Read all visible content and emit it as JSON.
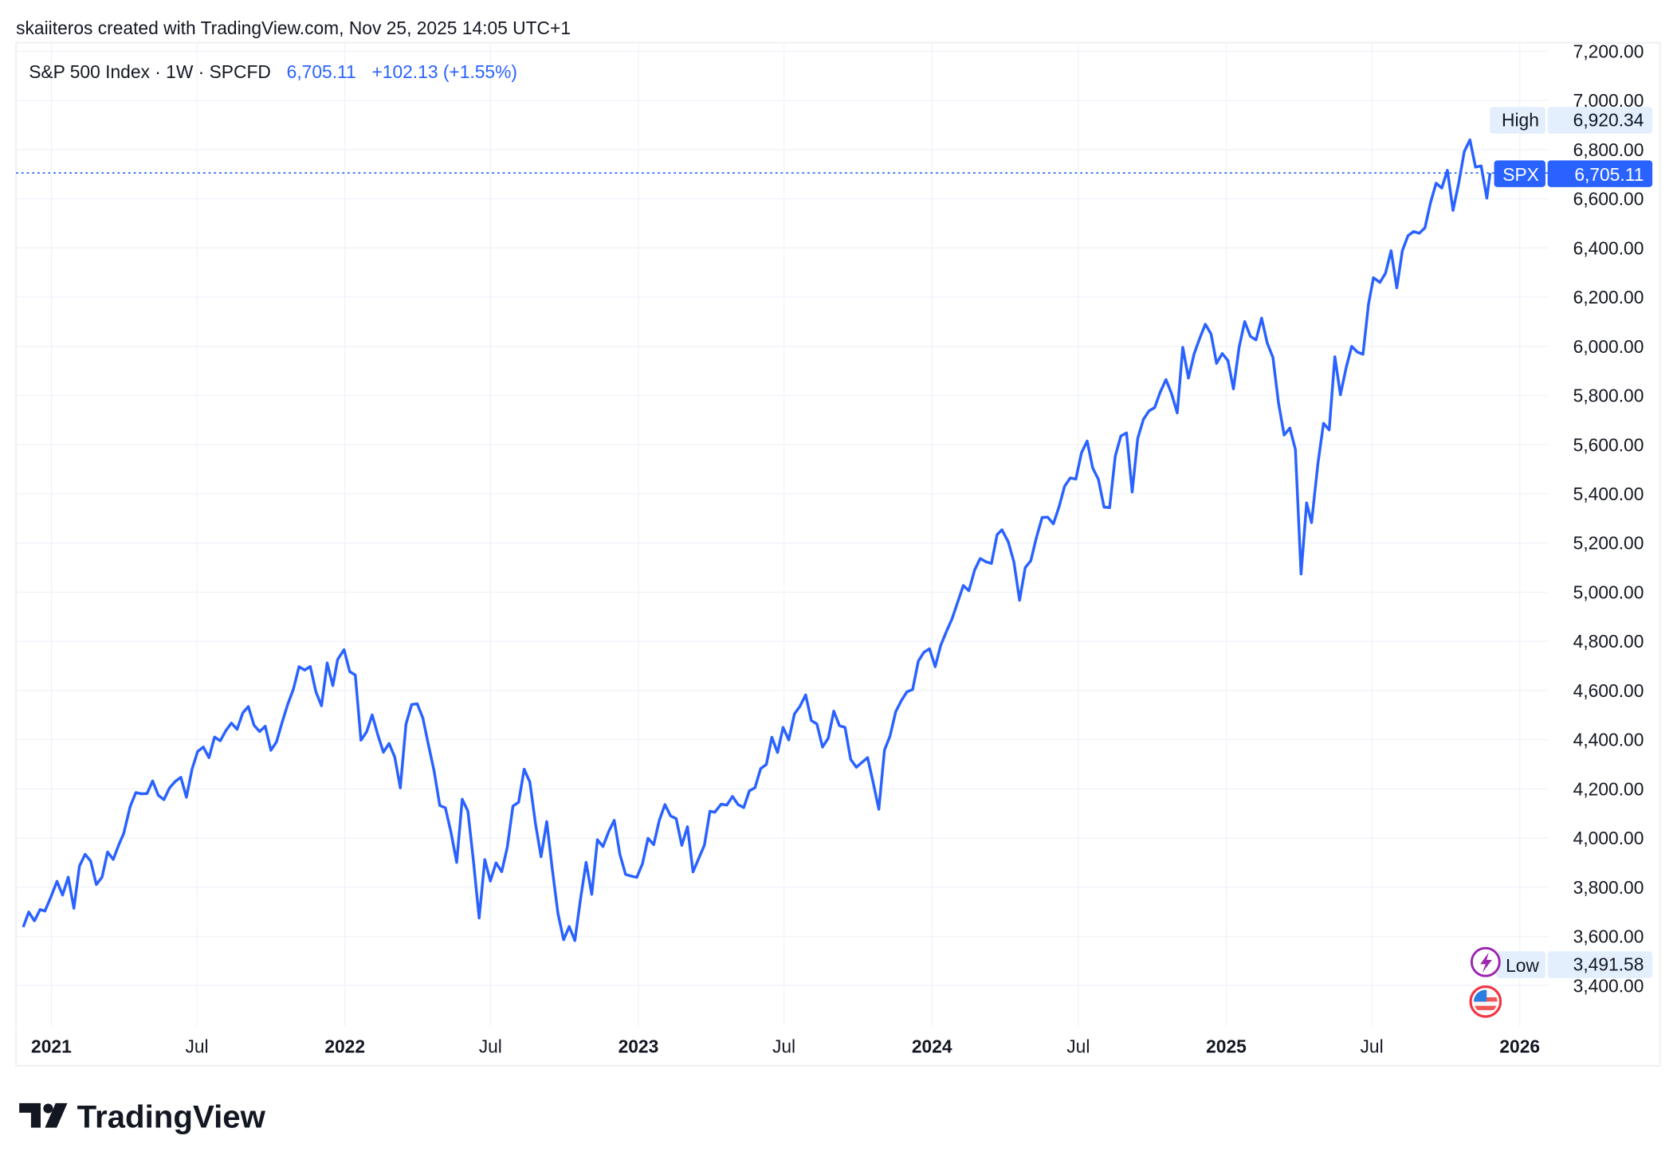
{
  "header": {
    "attribution": "skaiiteros created with TradingView.com, Nov 25, 2025 14:05 UTC+1"
  },
  "legend": {
    "symbol": "S&P 500 Index · 1W · SPCFD",
    "price": "6,705.11",
    "change": "+102.13 (+1.55%)"
  },
  "labels": {
    "high": {
      "name": "High",
      "value": "6,920.34"
    },
    "last": {
      "name": "SPX",
      "value": "6,705.11"
    },
    "low": {
      "name": "Low",
      "value": "3,491.58"
    }
  },
  "icons": {
    "events": [
      "lightning-event-icon",
      "us-flag-icon"
    ]
  },
  "logo": {
    "text": "TradingView"
  },
  "colors": {
    "line": "#2962ff",
    "label_bg": "#e3effd",
    "grid": "#f0f3fa",
    "text": "#131722"
  },
  "chart_data": {
    "type": "line",
    "title": "S&P 500 Index · 1W · SPCFD",
    "last_value": 6705.11,
    "high": 6920.34,
    "low": 3491.58,
    "ylim": [
      3300,
      7250
    ],
    "y_ticks": [
      "7,200.00",
      "7,000.00",
      "6,800.00",
      "6,600.00",
      "6,400.00",
      "6,200.00",
      "6,000.00",
      "5,800.00",
      "5,600.00",
      "5,400.00",
      "5,200.00",
      "5,000.00",
      "4,800.00",
      "4,600.00",
      "4,400.00",
      "4,200.00",
      "4,000.00",
      "3,800.00",
      "3,600.00",
      "3,400.00"
    ],
    "x_ticks": [
      {
        "label": "2021",
        "date": "2021-01-01",
        "year": true
      },
      {
        "label": "Jul",
        "date": "2021-07-01",
        "year": false
      },
      {
        "label": "2022",
        "date": "2022-01-01",
        "year": true
      },
      {
        "label": "Jul",
        "date": "2022-07-01",
        "year": false
      },
      {
        "label": "2023",
        "date": "2023-01-01",
        "year": true
      },
      {
        "label": "Jul",
        "date": "2023-07-01",
        "year": false
      },
      {
        "label": "2024",
        "date": "2024-01-01",
        "year": true
      },
      {
        "label": "Jul",
        "date": "2024-07-01",
        "year": false
      },
      {
        "label": "2025",
        "date": "2025-01-01",
        "year": true
      },
      {
        "label": "Jul",
        "date": "2025-07-01",
        "year": false
      },
      {
        "label": "2026",
        "date": "2026-01-01",
        "year": true
      }
    ],
    "grid": true,
    "series": [
      {
        "x": [
          "2020-11-27",
          "2020-12-04",
          "2020-12-11",
          "2020-12-18",
          "2020-12-24",
          "2020-12-31",
          "2021-01-08",
          "2021-01-15",
          "2021-01-22",
          "2021-01-29",
          "2021-02-05",
          "2021-02-12",
          "2021-02-19",
          "2021-02-26",
          "2021-03-05",
          "2021-03-12",
          "2021-03-19",
          "2021-03-26",
          "2021-04-01",
          "2021-04-09",
          "2021-04-16",
          "2021-04-23",
          "2021-04-30",
          "2021-05-07",
          "2021-05-14",
          "2021-05-21",
          "2021-05-28",
          "2021-06-04",
          "2021-06-11",
          "2021-06-18",
          "2021-06-25",
          "2021-07-02",
          "2021-07-09",
          "2021-07-16",
          "2021-07-23",
          "2021-07-30",
          "2021-08-06",
          "2021-08-13",
          "2021-08-20",
          "2021-08-27",
          "2021-09-03",
          "2021-09-10",
          "2021-09-17",
          "2021-09-24",
          "2021-10-01",
          "2021-10-08",
          "2021-10-15",
          "2021-10-22",
          "2021-10-29",
          "2021-11-05",
          "2021-11-12",
          "2021-11-19",
          "2021-11-26",
          "2021-12-03",
          "2021-12-10",
          "2021-12-17",
          "2021-12-23",
          "2021-12-31",
          "2022-01-07",
          "2022-01-14",
          "2022-01-21",
          "2022-01-28",
          "2022-02-04",
          "2022-02-11",
          "2022-02-18",
          "2022-02-25",
          "2022-03-04",
          "2022-03-11",
          "2022-03-18",
          "2022-03-25",
          "2022-04-01",
          "2022-04-08",
          "2022-04-14",
          "2022-04-22",
          "2022-04-29",
          "2022-05-06",
          "2022-05-13",
          "2022-05-20",
          "2022-05-27",
          "2022-06-03",
          "2022-06-10",
          "2022-06-17",
          "2022-06-24",
          "2022-07-01",
          "2022-07-08",
          "2022-07-15",
          "2022-07-22",
          "2022-07-29",
          "2022-08-05",
          "2022-08-12",
          "2022-08-19",
          "2022-08-26",
          "2022-09-02",
          "2022-09-09",
          "2022-09-16",
          "2022-09-23",
          "2022-09-30",
          "2022-10-07",
          "2022-10-14",
          "2022-10-21",
          "2022-10-28",
          "2022-11-04",
          "2022-11-11",
          "2022-11-18",
          "2022-11-25",
          "2022-12-02",
          "2022-12-09",
          "2022-12-16",
          "2022-12-23",
          "2022-12-30",
          "2023-01-06",
          "2023-01-13",
          "2023-01-20",
          "2023-01-27",
          "2023-02-03",
          "2023-02-10",
          "2023-02-17",
          "2023-02-24",
          "2023-03-03",
          "2023-03-10",
          "2023-03-17",
          "2023-03-24",
          "2023-03-31",
          "2023-04-06",
          "2023-04-14",
          "2023-04-21",
          "2023-04-28",
          "2023-05-05",
          "2023-05-12",
          "2023-05-19",
          "2023-05-26",
          "2023-06-02",
          "2023-06-09",
          "2023-06-16",
          "2023-06-23",
          "2023-06-30",
          "2023-07-07",
          "2023-07-14",
          "2023-07-21",
          "2023-07-28",
          "2023-08-04",
          "2023-08-11",
          "2023-08-18",
          "2023-08-25",
          "2023-09-01",
          "2023-09-08",
          "2023-09-15",
          "2023-09-22",
          "2023-09-29",
          "2023-10-06",
          "2023-10-13",
          "2023-10-20",
          "2023-10-27",
          "2023-11-03",
          "2023-11-10",
          "2023-11-17",
          "2023-11-24",
          "2023-12-01",
          "2023-12-08",
          "2023-12-15",
          "2023-12-22",
          "2023-12-29",
          "2024-01-05",
          "2024-01-12",
          "2024-01-19",
          "2024-01-26",
          "2024-02-02",
          "2024-02-09",
          "2024-02-16",
          "2024-02-23",
          "2024-03-01",
          "2024-03-08",
          "2024-03-15",
          "2024-03-22",
          "2024-03-28",
          "2024-04-05",
          "2024-04-12",
          "2024-04-19",
          "2024-04-26",
          "2024-05-03",
          "2024-05-10",
          "2024-05-17",
          "2024-05-24",
          "2024-05-31",
          "2024-06-07",
          "2024-06-14",
          "2024-06-21",
          "2024-06-28",
          "2024-07-05",
          "2024-07-12",
          "2024-07-19",
          "2024-07-26",
          "2024-08-02",
          "2024-08-09",
          "2024-08-16",
          "2024-08-23",
          "2024-08-30",
          "2024-09-06",
          "2024-09-13",
          "2024-09-20",
          "2024-09-27",
          "2024-10-04",
          "2024-10-11",
          "2024-10-18",
          "2024-10-25",
          "2024-11-01",
          "2024-11-08",
          "2024-11-15",
          "2024-11-22",
          "2024-11-29",
          "2024-12-06",
          "2024-12-13",
          "2024-12-20",
          "2024-12-27",
          "2025-01-03",
          "2025-01-10",
          "2025-01-17",
          "2025-01-24",
          "2025-01-31",
          "2025-02-07",
          "2025-02-14",
          "2025-02-21",
          "2025-02-28",
          "2025-03-07",
          "2025-03-14",
          "2025-03-21",
          "2025-03-28",
          "2025-04-04",
          "2025-04-11",
          "2025-04-17",
          "2025-04-25",
          "2025-05-02",
          "2025-05-09",
          "2025-05-16",
          "2025-05-23",
          "2025-05-30",
          "2025-06-06",
          "2025-06-13",
          "2025-06-20",
          "2025-06-27",
          "2025-07-03",
          "2025-07-11",
          "2025-07-18",
          "2025-07-25",
          "2025-08-01",
          "2025-08-08",
          "2025-08-15",
          "2025-08-22",
          "2025-08-29",
          "2025-09-05",
          "2025-09-12",
          "2025-09-19",
          "2025-09-26",
          "2025-10-03",
          "2025-10-10",
          "2025-10-17",
          "2025-10-24",
          "2025-10-31",
          "2025-11-07",
          "2025-11-14",
          "2025-11-21",
          "2025-11-25"
        ],
        "values": [
          3638,
          3699,
          3663,
          3709,
          3703,
          3756,
          3824,
          3768,
          3841,
          3714,
          3886,
          3934,
          3906,
          3811,
          3841,
          3943,
          3913,
          3974,
          4019,
          4128,
          4185,
          4180,
          4181,
          4232,
          4174,
          4156,
          4204,
          4230,
          4247,
          4166,
          4281,
          4352,
          4370,
          4327,
          4411,
          4395,
          4437,
          4468,
          4442,
          4509,
          4535,
          4459,
          4433,
          4455,
          4357,
          4391,
          4471,
          4545,
          4605,
          4697,
          4683,
          4698,
          4595,
          4538,
          4712,
          4620,
          4726,
          4766,
          4677,
          4663,
          4398,
          4432,
          4501,
          4419,
          4349,
          4385,
          4329,
          4204,
          4463,
          4543,
          4546,
          4488,
          4393,
          4272,
          4132,
          4123,
          4023,
          3901,
          4158,
          4109,
          3901,
          3675,
          3912,
          3825,
          3899,
          3863,
          3962,
          4130,
          4145,
          4280,
          4228,
          4058,
          3924,
          4067,
          3873,
          3693,
          3586,
          3640,
          3583,
          3752,
          3901,
          3771,
          3993,
          3965,
          4026,
          4072,
          3934,
          3852,
          3845,
          3840,
          3895,
          3999,
          3973,
          4071,
          4136,
          4090,
          4079,
          3970,
          4046,
          3862,
          3917,
          3971,
          4109,
          4105,
          4138,
          4134,
          4169,
          4136,
          4124,
          4192,
          4205,
          4282,
          4299,
          4410,
          4348,
          4450,
          4399,
          4505,
          4536,
          4582,
          4478,
          4464,
          4370,
          4406,
          4516,
          4457,
          4450,
          4320,
          4288,
          4308,
          4327,
          4224,
          4117,
          4358,
          4415,
          4514,
          4559,
          4595,
          4604,
          4719,
          4755,
          4770,
          4697,
          4784,
          4840,
          4891,
          4959,
          5027,
          5006,
          5089,
          5137,
          5124,
          5117,
          5234,
          5254,
          5204,
          5123,
          4967,
          5100,
          5128,
          5223,
          5304,
          5305,
          5278,
          5347,
          5431,
          5465,
          5460,
          5567,
          5615,
          5505,
          5459,
          5346,
          5344,
          5554,
          5635,
          5648,
          5408,
          5626,
          5703,
          5738,
          5751,
          5815,
          5865,
          5808,
          5729,
          5996,
          5871,
          5969,
          6032,
          6090,
          6051,
          5931,
          5971,
          5942,
          5827,
          5997,
          6101,
          6041,
          6026,
          6115,
          6013,
          5955,
          5770,
          5639,
          5668,
          5581,
          5074,
          5363,
          5283,
          5525,
          5687,
          5660,
          5958,
          5803,
          5912,
          6000,
          5977,
          5968,
          6173,
          6279,
          6260,
          6297,
          6389,
          6238,
          6389,
          6450,
          6467,
          6460,
          6482,
          6584,
          6664,
          6644,
          6716,
          6553,
          6664,
          6792,
          6840,
          6729,
          6734,
          6603,
          6705
        ]
      }
    ]
  }
}
